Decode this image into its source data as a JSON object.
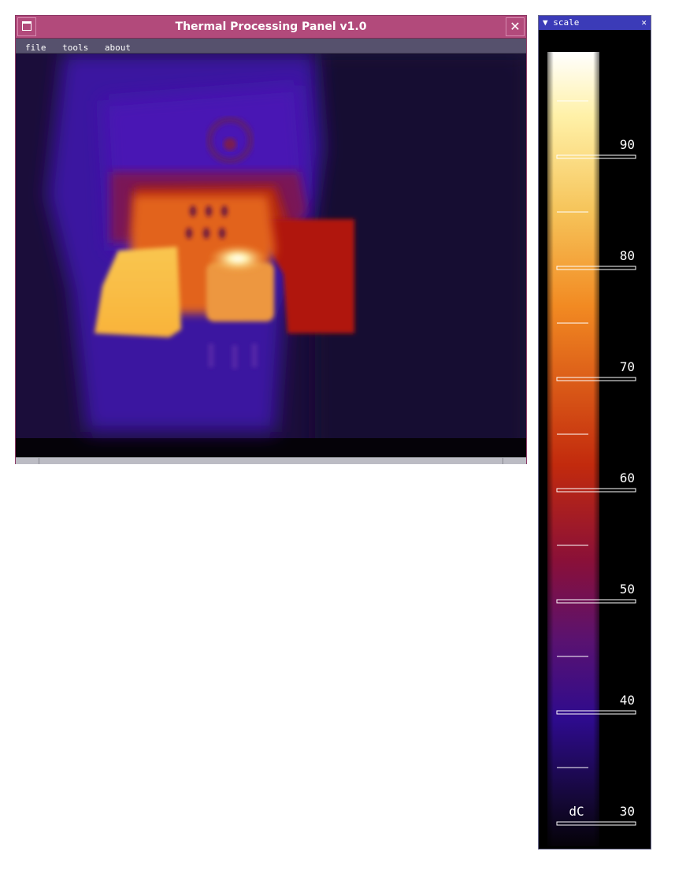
{
  "window": {
    "title": "Thermal Processing Panel v1.0",
    "close_glyph": "✕",
    "menu_icon": "window-menu-icon",
    "close_icon": "close-icon"
  },
  "menu": [
    "file",
    "tools",
    "about"
  ],
  "scale_panel": {
    "title": "▼ scale",
    "close_glyph": "✕",
    "unit": "dC",
    "labels": [
      "90",
      "80",
      "70",
      "60",
      "50",
      "40",
      "30"
    ],
    "min": 30,
    "max": 95,
    "colors": [
      "#ffffff",
      "#fff1a8",
      "#f6c45a",
      "#f28a22",
      "#c22a0d",
      "#8a1038",
      "#5a1270",
      "#2e0b8e",
      "#150838",
      "#050208"
    ]
  }
}
